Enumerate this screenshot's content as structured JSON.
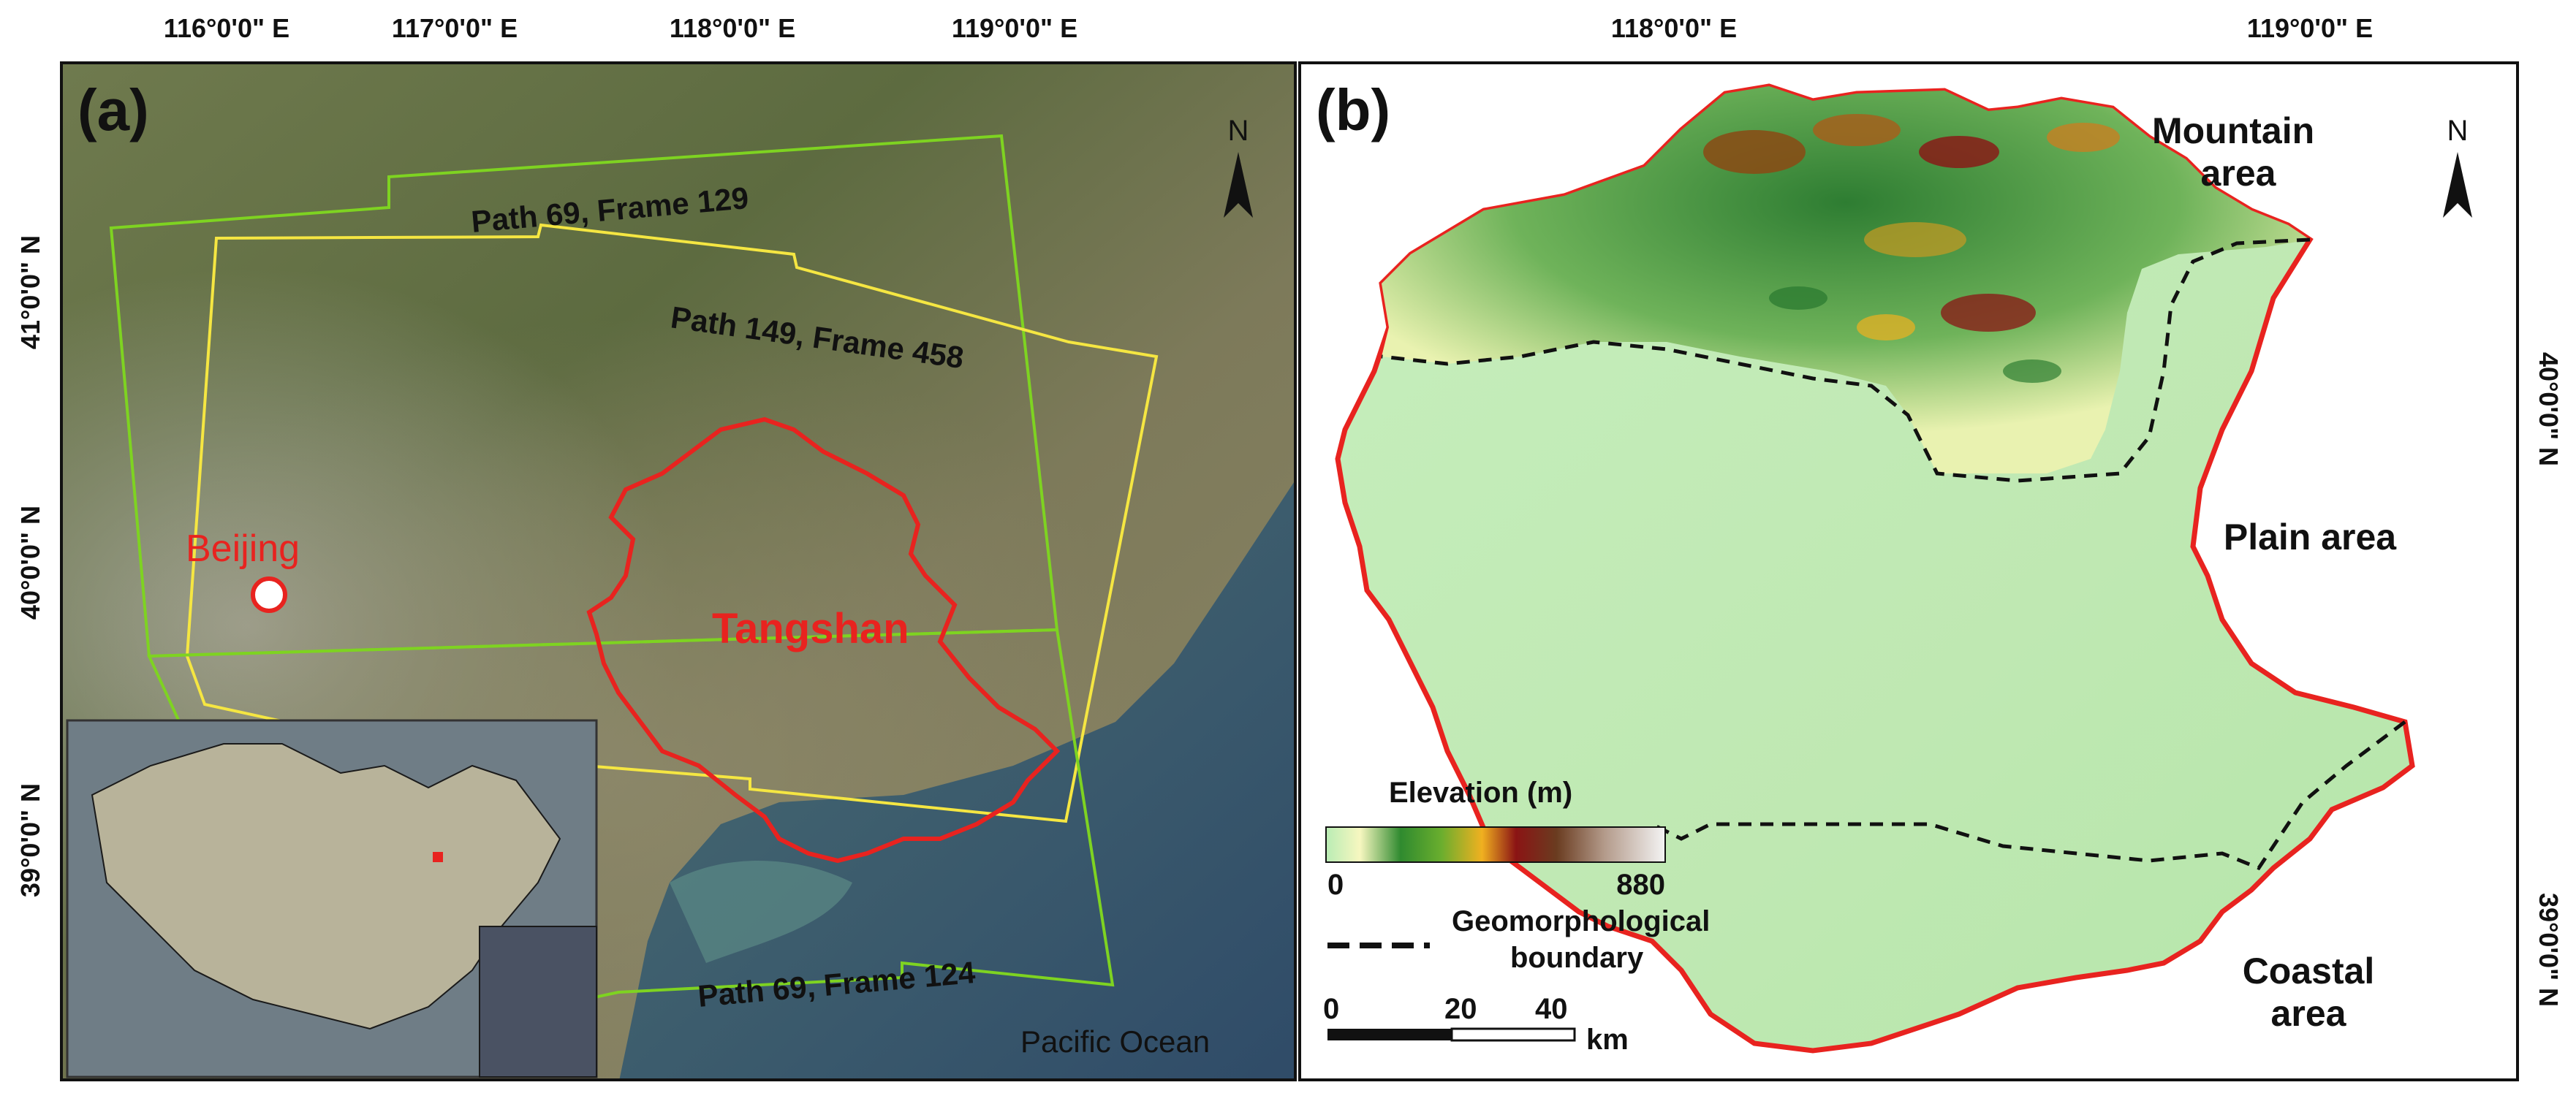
{
  "panel_a": {
    "label": "(a)",
    "north": "N",
    "city": "Beijing",
    "region": "Tangshan",
    "ocean": "Pacific Ocean",
    "frames": [
      {
        "label": "Path 69, Frame 129",
        "color": "#7ed321"
      },
      {
        "label": "Path 149, Frame 458",
        "color": "#f5e642"
      },
      {
        "label": "Path 69, Frame 124",
        "color": "#7ed321"
      }
    ],
    "top_ticks": [
      "116°0'0\" E",
      "117°0'0\" E",
      "118°0'0\" E",
      "119°0'0\" E"
    ],
    "left_ticks": [
      "41°0'0\" N",
      "40°0'0\" N",
      "39°0'0\" N"
    ]
  },
  "panel_b": {
    "label": "(b)",
    "north": "N",
    "zones": [
      "Mountain area",
      "Plain area",
      "Coastal area"
    ],
    "top_ticks": [
      "118°0'0\" E",
      "119°0'0\" E"
    ],
    "right_ticks": [
      "40°0'0\" N",
      "39°0'0\" N"
    ],
    "legend": {
      "elevation_title": "Elevation (m)",
      "elev_min": "0",
      "elev_max": "880",
      "boundary_label_1": "Geomorphological",
      "boundary_label_2": "boundary",
      "scale_ticks": [
        "0",
        "20",
        "40"
      ],
      "scale_unit": "km"
    }
  },
  "colors": {
    "boundary_red": "#e8231f",
    "frame_green": "#7ed321",
    "frame_yellow": "#f5e642",
    "plain_green": "#b9ecb4",
    "mountain_green": "#3c9a3a"
  }
}
